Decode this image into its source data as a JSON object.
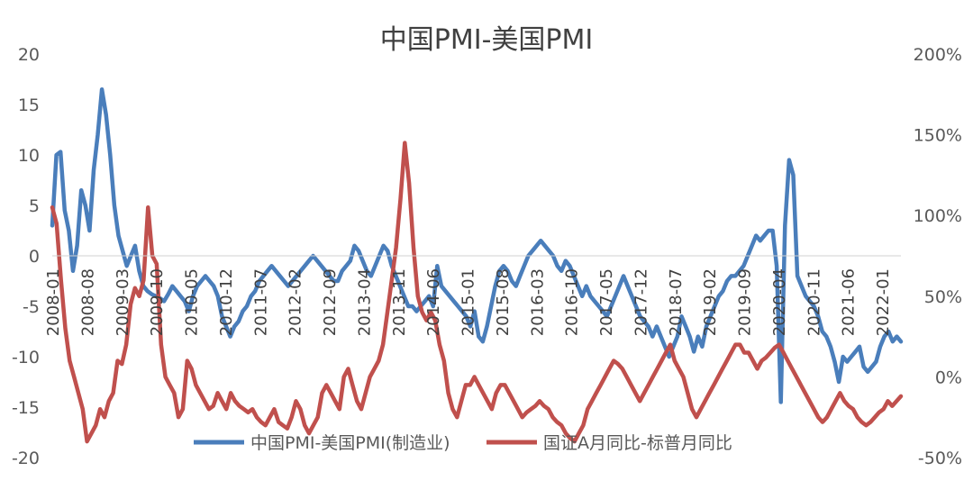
{
  "chart_data": {
    "type": "line",
    "title": "中国PMI-美国PMI",
    "y_left": {
      "min": -20,
      "max": 20,
      "step": 5,
      "ticks": [
        "20",
        "15",
        "10",
        "5",
        "0",
        "-5",
        "-10",
        "-15",
        "-20"
      ]
    },
    "y_right": {
      "min": -50,
      "max": 200,
      "step": 50,
      "ticks": [
        "200%",
        "150%",
        "100%",
        "50%",
        "0%",
        "-50%"
      ]
    },
    "x_tick_labels": [
      "2008-01",
      "2008-08",
      "2009-03",
      "2009-10",
      "2010-05",
      "2010-12",
      "2011-07",
      "2012-02",
      "2012-09",
      "2013-04",
      "2013-11",
      "2014-06",
      "2015-01",
      "2015-08",
      "2016-03",
      "2016-10",
      "2017-05",
      "2017-12",
      "2018-07",
      "2019-02",
      "2019-09",
      "2020-04",
      "2020-11",
      "2021-06",
      "2022-01"
    ],
    "legend_position": "bottom",
    "grid": false,
    "series": [
      {
        "name": "中国PMI-美国PMI(制造业)",
        "axis": "left",
        "color": "#4a7ebb",
        "values": [
          3,
          10,
          10.3,
          4.5,
          2.5,
          -1.5,
          1,
          6.5,
          5,
          2.5,
          8.5,
          12,
          16.5,
          14,
          10,
          5,
          2,
          0.5,
          -1,
          0,
          1,
          -1.5,
          -3,
          -3.5,
          -3.8,
          -4,
          -4.2,
          -4.5,
          -3.8,
          -3,
          -3.5,
          -4,
          -4.5,
          -5.5,
          -4,
          -3,
          -2.5,
          -2,
          -2.5,
          -3,
          -4,
          -6,
          -7,
          -8,
          -7,
          -6.5,
          -5.5,
          -5,
          -4,
          -3.5,
          -2.5,
          -2,
          -1.5,
          -1,
          -1.5,
          -2,
          -2.5,
          -3,
          -2.5,
          -2,
          -1.5,
          -1,
          -0.5,
          0,
          -0.5,
          -1,
          -1.5,
          -2,
          -2.5,
          -2.5,
          -1.5,
          -1,
          -0.5,
          1,
          0.5,
          -0.5,
          -1.5,
          -2,
          -1,
          0,
          1,
          0.5,
          -1,
          -2,
          -3,
          -4,
          -5,
          -5,
          -5.5,
          -5,
          -4.5,
          -4,
          -5,
          -1,
          -3,
          -3.5,
          -4,
          -4.5,
          -5,
          -5.5,
          -6,
          -7,
          -5.5,
          -8,
          -8.5,
          -7,
          -5,
          -3,
          -1.5,
          -1,
          -1.5,
          -2.5,
          -3,
          -2,
          -1,
          0,
          0.5,
          1,
          1.5,
          1,
          0.5,
          0,
          -1,
          -1.5,
          -0.5,
          -1,
          -2,
          -3,
          -4,
          -3,
          -4,
          -4.5,
          -5,
          -5.5,
          -6,
          -5,
          -4,
          -3,
          -2,
          -3,
          -4,
          -5,
          -6,
          -6.5,
          -7,
          -8,
          -7,
          -8,
          -9,
          -10,
          -9,
          -8,
          -6,
          -7,
          -8,
          -9.5,
          -8,
          -9,
          -7,
          -6,
          -5,
          -4,
          -3.5,
          -2.5,
          -2,
          -2,
          -1.5,
          -1,
          0,
          1,
          2,
          1.5,
          2,
          2.5,
          2.5,
          -1,
          -14.5,
          3,
          9.5,
          8,
          -2,
          -3,
          -4,
          -4.5,
          -5,
          -6,
          -7.5,
          -8,
          -9,
          -10.5,
          -12.5,
          -10,
          -10.5,
          -10,
          -9.5,
          -9,
          -11,
          -11.5,
          -11,
          -10.5,
          -9,
          -8,
          -7.5,
          -8.5,
          -8,
          -8.5
        ]
      },
      {
        "name": "国证A月同比-标普月同比",
        "axis": "right",
        "color": "#c0504d",
        "values": [
          105,
          95,
          60,
          30,
          10,
          0,
          -10,
          -20,
          -40,
          -35,
          -30,
          -20,
          -25,
          -15,
          -10,
          10,
          8,
          20,
          45,
          55,
          50,
          60,
          105,
          75,
          70,
          20,
          0,
          -5,
          -10,
          -25,
          -20,
          10,
          5,
          -5,
          -10,
          -15,
          -20,
          -18,
          -10,
          -15,
          -20,
          -10,
          -15,
          -18,
          -20,
          -22,
          -20,
          -25,
          -28,
          -30,
          -25,
          -20,
          -28,
          -30,
          -32,
          -25,
          -15,
          -20,
          -30,
          -35,
          -30,
          -25,
          -10,
          -5,
          -10,
          -15,
          -20,
          0,
          5,
          -5,
          -15,
          -20,
          -10,
          0,
          5,
          10,
          20,
          40,
          60,
          80,
          110,
          145,
          120,
          80,
          50,
          40,
          35,
          40,
          35,
          20,
          10,
          -10,
          -20,
          -25,
          -15,
          -5,
          -5,
          0,
          -5,
          -10,
          -15,
          -20,
          -10,
          -5,
          -5,
          -10,
          -15,
          -20,
          -25,
          -22,
          -20,
          -18,
          -15,
          -18,
          -20,
          -25,
          -28,
          -30,
          -35,
          -38,
          -40,
          -35,
          -30,
          -20,
          -15,
          -10,
          -5,
          0,
          5,
          10,
          8,
          5,
          0,
          -5,
          -10,
          -15,
          -10,
          -5,
          0,
          5,
          10,
          15,
          20,
          10,
          5,
          0,
          -10,
          -20,
          -25,
          -20,
          -15,
          -10,
          -5,
          0,
          5,
          10,
          15,
          20,
          20,
          15,
          15,
          10,
          5,
          10,
          12,
          15,
          18,
          20,
          15,
          10,
          5,
          0,
          -5,
          -10,
          -15,
          -20,
          -25,
          -28,
          -25,
          -20,
          -15,
          -10,
          -15,
          -18,
          -20,
          -25,
          -28,
          -30,
          -28,
          -25,
          -22,
          -20,
          -15,
          -18,
          -15,
          -12
        ]
      }
    ]
  }
}
